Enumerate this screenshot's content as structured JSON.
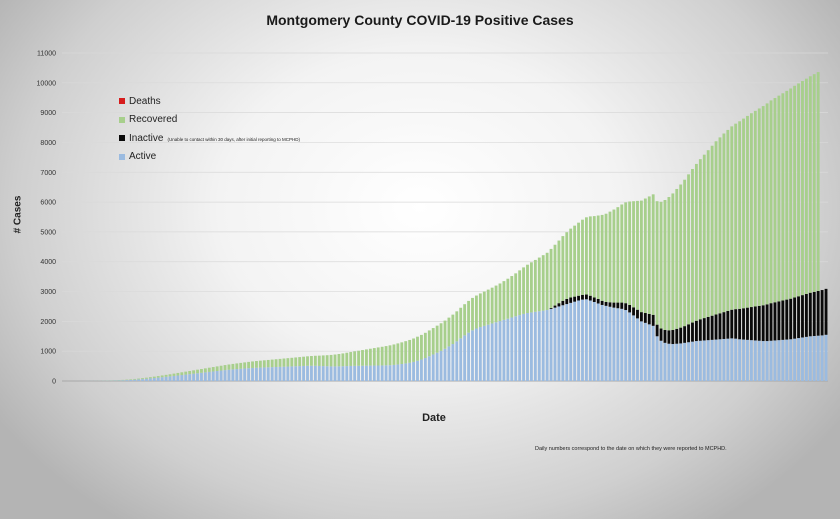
{
  "title": "Montgomery County COVID-19 Positive Cases",
  "note": "Daily numbers correspond to the date on which they were reported to MCPHD.",
  "chart_data": {
    "type": "bar",
    "stacked": true,
    "xlabel": "Date",
    "ylabel": "# Cases",
    "ylim": [
      0,
      11000
    ],
    "yticks": [
      0,
      1000,
      2000,
      3000,
      4000,
      5000,
      6000,
      7000,
      8000,
      9000,
      10000,
      11000
    ],
    "grid": true,
    "legend_position": "top-left",
    "series": [
      {
        "name": "Active",
        "color": "#9bbbe0",
        "values": [
          0,
          0,
          0,
          1,
          1,
          1,
          2,
          3,
          4,
          5,
          7,
          9,
          12,
          15,
          19,
          24,
          30,
          37,
          45,
          54,
          64,
          75,
          87,
          100,
          113,
          127,
          141,
          155,
          170,
          185,
          200,
          215,
          230,
          245,
          260,
          275,
          290,
          305,
          320,
          335,
          350,
          365,
          378,
          390,
          400,
          410,
          420,
          430,
          438,
          445,
          450,
          455,
          460,
          465,
          470,
          475,
          480,
          485,
          490,
          495,
          500,
          505,
          510,
          512,
          510,
          505,
          500,
          495,
          490,
          490,
          492,
          495,
          500,
          505,
          508,
          510,
          512,
          514,
          516,
          518,
          520,
          522,
          525,
          530,
          540,
          555,
          570,
          590,
          610,
          640,
          680,
          720,
          770,
          830,
          890,
          950,
          1010,
          1080,
          1160,
          1240,
          1330,
          1430,
          1530,
          1620,
          1700,
          1760,
          1810,
          1850,
          1890,
          1930,
          1970,
          2010,
          2050,
          2090,
          2130,
          2170,
          2210,
          2250,
          2280,
          2300,
          2320,
          2340,
          2360,
          2380,
          2420,
          2460,
          2500,
          2540,
          2580,
          2620,
          2660,
          2700,
          2730,
          2740,
          2700,
          2650,
          2600,
          2550,
          2520,
          2490,
          2460,
          2440,
          2420,
          2380,
          2300,
          2200,
          2100,
          2000,
          1950,
          1900,
          1850,
          1500,
          1350,
          1280,
          1250,
          1240,
          1250,
          1260,
          1280,
          1300,
          1320,
          1340,
          1350,
          1360,
          1370,
          1380,
          1390,
          1400,
          1410,
          1420,
          1430,
          1420,
          1400,
          1390,
          1380,
          1370,
          1360,
          1350,
          1340,
          1340,
          1350,
          1360,
          1370,
          1380,
          1390,
          1400,
          1420,
          1440,
          1460,
          1480,
          1500,
          1510,
          1520,
          1530,
          1550
        ]
      },
      {
        "name": "Inactive",
        "color": "#0a0a0a",
        "values": [
          0,
          0,
          0,
          0,
          0,
          0,
          0,
          0,
          0,
          0,
          0,
          0,
          0,
          0,
          0,
          0,
          0,
          0,
          0,
          0,
          0,
          0,
          0,
          0,
          0,
          0,
          0,
          0,
          0,
          0,
          0,
          0,
          0,
          0,
          0,
          0,
          0,
          0,
          0,
          0,
          0,
          0,
          0,
          0,
          0,
          0,
          0,
          0,
          0,
          0,
          0,
          0,
          0,
          0,
          0,
          0,
          0,
          0,
          0,
          0,
          0,
          0,
          0,
          0,
          0,
          0,
          0,
          0,
          0,
          0,
          0,
          0,
          0,
          0,
          0,
          0,
          0,
          0,
          0,
          0,
          0,
          0,
          0,
          0,
          0,
          0,
          0,
          0,
          0,
          0,
          0,
          0,
          0,
          0,
          0,
          0,
          0,
          0,
          0,
          0,
          0,
          0,
          0,
          0,
          0,
          0,
          0,
          0,
          0,
          0,
          0,
          0,
          0,
          0,
          0,
          0,
          0,
          0,
          0,
          0,
          0,
          0,
          0,
          0,
          30,
          70,
          110,
          150,
          170,
          180,
          170,
          160,
          160,
          160,
          160,
          150,
          150,
          140,
          130,
          150,
          170,
          190,
          210,
          230,
          250,
          270,
          290,
          310,
          330,
          350,
          370,
          390,
          410,
          430,
          450,
          470,
          500,
          530,
          560,
          600,
          640,
          680,
          720,
          750,
          780,
          810,
          840,
          870,
          900,
          930,
          960,
          990,
          1020,
          1050,
          1080,
          1110,
          1140,
          1170,
          1200,
          1230,
          1260,
          1280,
          1300,
          1320,
          1340,
          1360,
          1380,
          1400,
          1420,
          1440,
          1460,
          1480,
          1500,
          1520,
          1540,
          1560,
          1580,
          1600,
          1620,
          1640,
          1660,
          1680,
          1700,
          1720,
          1740
        ]
      },
      {
        "name": "Recovered",
        "color": "#a7cf8c",
        "values": [
          0,
          0,
          0,
          0,
          0,
          0,
          1,
          1,
          2,
          3,
          4,
          5,
          7,
          9,
          11,
          14,
          17,
          20,
          24,
          28,
          32,
          37,
          42,
          47,
          53,
          59,
          65,
          71,
          78,
          85,
          92,
          99,
          106,
          113,
          120,
          127,
          134,
          141,
          148,
          155,
          162,
          169,
          176,
          183,
          190,
          197,
          204,
          211,
          218,
          225,
          232,
          239,
          246,
          253,
          260,
          267,
          274,
          281,
          288,
          295,
          302,
          310,
          318,
          326,
          336,
          346,
          358,
          370,
          384,
          398,
          414,
          430,
          448,
          466,
          486,
          506,
          526,
          546,
          566,
          586,
          606,
          626,
          646,
          666,
          686,
          706,
          726,
          746,
          766,
          786,
          806,
          826,
          846,
          866,
          886,
          906,
          926,
          946,
          966,
          986,
          1006,
          1026,
          1046,
          1066,
          1086,
          1106,
          1126,
          1150,
          1175,
          1200,
          1230,
          1260,
          1300,
          1340,
          1390,
          1440,
          1500,
          1560,
          1620,
          1680,
          1740,
          1800,
          1860,
          1920,
          1980,
          2040,
          2100,
          2170,
          2240,
          2310,
          2380,
          2450,
          2520,
          2590,
          2660,
          2730,
          2800,
          2880,
          2960,
          3040,
          3120,
          3200,
          3290,
          3380,
          3470,
          3560,
          3650,
          3740,
          3840,
          3940,
          4040,
          4140,
          4250,
          4360,
          4470,
          4580,
          4690,
          4800,
          4910,
          5030,
          5150,
          5260,
          5370,
          5480,
          5590,
          5700,
          5810,
          5900,
          5990,
          6070,
          6150,
          6220,
          6290,
          6360,
          6430,
          6500,
          6560,
          6620,
          6680,
          6740,
          6800,
          6850,
          6900,
          6950,
          7000,
          7050,
          7100,
          7140,
          7180,
          7220,
          7260,
          7300,
          7340
        ]
      },
      {
        "name": "Deaths",
        "color": "#d61c1c",
        "values": [
          0,
          0,
          0,
          0,
          0,
          0,
          0,
          0,
          0,
          0,
          0,
          0,
          0,
          0,
          0,
          0,
          0,
          0,
          0,
          0,
          0,
          0,
          0,
          0,
          0,
          0,
          0,
          0,
          0,
          0,
          0,
          0,
          0,
          0,
          0,
          0,
          0,
          0,
          0,
          0,
          0,
          0,
          0,
          0,
          0,
          0,
          0,
          0,
          0,
          0,
          0,
          0,
          0,
          0,
          0,
          0,
          0,
          0,
          0,
          0,
          0,
          0,
          0,
          0,
          0,
          0,
          0,
          0,
          0,
          0,
          0,
          0,
          0,
          0,
          0,
          0,
          0,
          0,
          0,
          0,
          0,
          0,
          0,
          0,
          0,
          0,
          0,
          0,
          0,
          0,
          0,
          0,
          0,
          0,
          0,
          0,
          0,
          0,
          0,
          0,
          0,
          0,
          0,
          0,
          0,
          0,
          0,
          0,
          0,
          0,
          0,
          0,
          0,
          0,
          0,
          0,
          0,
          0,
          0,
          0,
          0,
          0,
          0,
          0,
          0,
          0,
          0,
          0,
          0,
          0,
          0,
          0,
          0,
          0,
          0,
          0,
          0,
          0,
          0,
          0,
          0,
          0,
          0,
          0,
          0,
          0,
          0,
          0,
          0,
          0,
          0,
          0,
          0,
          0,
          0,
          0,
          0,
          0,
          0,
          0,
          0,
          0,
          0,
          0,
          0,
          0,
          0,
          0,
          0,
          0,
          0,
          0,
          0,
          0,
          0,
          0,
          0,
          0,
          0,
          0,
          0,
          0,
          0,
          0,
          0,
          0,
          0,
          0,
          0,
          0,
          0,
          0,
          0,
          0,
          0
        ]
      }
    ]
  },
  "legend": {
    "items": [
      {
        "label": "Deaths",
        "sub": "",
        "color": "#d61c1c"
      },
      {
        "label": "Recovered",
        "sub": "",
        "color": "#a7cf8c"
      },
      {
        "label": "Inactive",
        "sub": "(Unable to contact within 30 days, after initial reporting to MCPHD)",
        "color": "#0a0a0a"
      },
      {
        "label": "Active",
        "sub": "",
        "color": "#9bbbe0"
      }
    ]
  }
}
